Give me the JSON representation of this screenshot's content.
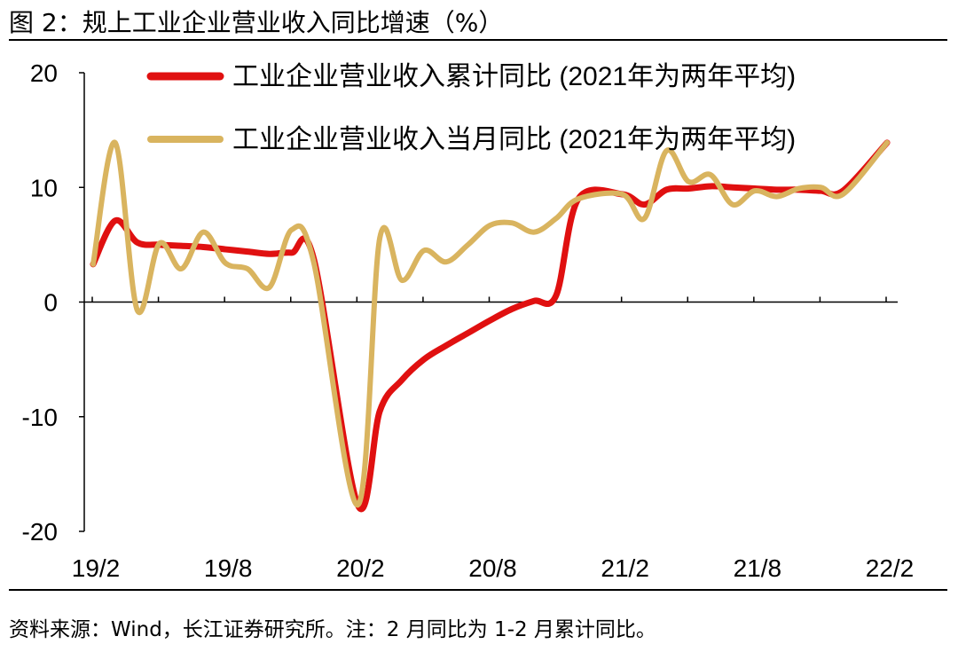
{
  "figure": {
    "title": "图 2：规上工业企业营业收入同比增速（%）",
    "source": "资料来源：Wind，长江证券研究所。注：2 月同比为 1-2 月累计同比。"
  },
  "chart_data": {
    "type": "line",
    "x": [
      "19/2",
      "19/3",
      "19/4",
      "19/5",
      "19/6",
      "19/7",
      "19/8",
      "19/9",
      "19/10",
      "19/11",
      "19/12",
      "20/1",
      "20/2",
      "20/3",
      "20/4",
      "20/5",
      "20/6",
      "20/7",
      "20/8",
      "20/9",
      "20/10",
      "20/11",
      "20/12",
      "21/1",
      "21/2",
      "21/3",
      "21/4",
      "21/5",
      "21/6",
      "21/7",
      "21/8",
      "21/9",
      "21/10",
      "21/11",
      "21/12",
      "22/1",
      "22/2"
    ],
    "x_tick_labels": [
      "19/2",
      "19/8",
      "20/2",
      "20/8",
      "21/2",
      "21/8",
      "22/2"
    ],
    "ylim": [
      -20,
      20
    ],
    "y_ticks": [
      -20,
      -10,
      0,
      10,
      20
    ],
    "legend_position": "top-right",
    "series": [
      {
        "name": "工业企业营业收入累计同比 (2021年为两年平均)",
        "color": "#e01010",
        "values": [
          3.3,
          7.1,
          5.2,
          5.0,
          4.9,
          4.8,
          4.6,
          4.4,
          4.2,
          4.3,
          3.8,
          null,
          -17.7,
          -9.5,
          -6.8,
          -5.0,
          -3.8,
          -2.7,
          -1.6,
          -0.6,
          0.1,
          0.6,
          9.0,
          null,
          9.4,
          8.5,
          9.8,
          9.9,
          10.1,
          10.0,
          9.9,
          9.8,
          9.8,
          9.7,
          9.7,
          null,
          13.9
        ]
      },
      {
        "name": "工业企业营业收入当月同比 (2021年为两年平均)",
        "color": "#d9b45f",
        "values": [
          3.3,
          13.9,
          -0.7,
          5.1,
          2.9,
          6.1,
          3.4,
          2.9,
          1.3,
          6.3,
          3.5,
          null,
          -17.7,
          5.6,
          1.9,
          4.5,
          3.5,
          5.0,
          6.7,
          6.9,
          6.1,
          7.3,
          9.0,
          null,
          9.4,
          7.3,
          13.2,
          10.5,
          11.1,
          8.5,
          9.7,
          9.2,
          9.9,
          10.0,
          9.4,
          null,
          13.9
        ]
      }
    ]
  }
}
